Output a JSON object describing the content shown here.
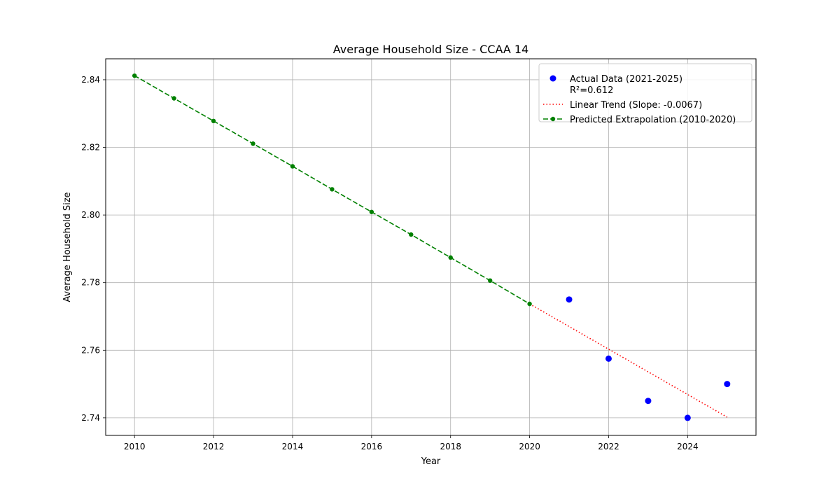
{
  "chart_data": {
    "type": "line",
    "title": "Average Household Size - CCAA 14",
    "xlabel": "Year",
    "ylabel": "Average Household Size",
    "xlim": [
      2009.27,
      2025.73
    ],
    "ylim": [
      2.7348,
      2.8462
    ],
    "xticks": [
      2010,
      2012,
      2014,
      2016,
      2018,
      2020,
      2022,
      2024
    ],
    "yticks": [
      2.74,
      2.76,
      2.78,
      2.8,
      2.82,
      2.84
    ],
    "grid": true,
    "legend_position": "top-right",
    "series": [
      {
        "name": "Actual Data (2021-2025)\nR²=0.612",
        "kind": "scatter",
        "color": "#0000ff",
        "x": [
          2021,
          2022,
          2023,
          2024,
          2025
        ],
        "y": [
          2.775,
          2.7575,
          2.745,
          2.74,
          2.75
        ]
      },
      {
        "name": "Linear Trend (Slope: -0.0067)",
        "kind": "line",
        "style": "dotted",
        "color": "#ff0000",
        "x": [
          2020,
          2025
        ],
        "y": [
          2.7737,
          2.7402
        ]
      },
      {
        "name": "Predicted Extrapolation (2010-2020)",
        "kind": "line-markers",
        "style": "dashed",
        "color": "#008000",
        "x": [
          2010,
          2011,
          2012,
          2013,
          2014,
          2015,
          2016,
          2017,
          2018,
          2019,
          2020
        ],
        "y": [
          2.8412,
          2.8345,
          2.8278,
          2.8211,
          2.8144,
          2.8076,
          2.8009,
          2.7942,
          2.7874,
          2.7806,
          2.7737
        ]
      }
    ]
  }
}
